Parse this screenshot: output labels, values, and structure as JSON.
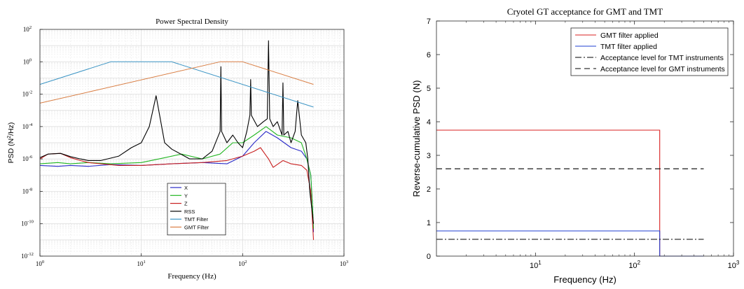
{
  "chart_data": [
    {
      "type": "line",
      "title": "Power Spectral Density",
      "xlabel": "Frequency (Hz)",
      "ylabel": "PSD (N²/Hz)",
      "xscale": "log",
      "yscale": "log",
      "xlim": [
        1,
        1000
      ],
      "ylim": [
        1e-12,
        100
      ],
      "grid": true,
      "legend_position": "bottom-center",
      "xticks": [
        {
          "value": 1,
          "base": "10",
          "exp": "0"
        },
        {
          "value": 10,
          "base": "10",
          "exp": "1"
        },
        {
          "value": 100,
          "base": "10",
          "exp": "2"
        },
        {
          "value": 1000,
          "base": "10",
          "exp": "3"
        }
      ],
      "yticks": [
        {
          "value": 1e-12,
          "base": "10",
          "exp": "-12"
        },
        {
          "value": 1e-10,
          "base": "10",
          "exp": "-10"
        },
        {
          "value": 1e-08,
          "base": "10",
          "exp": "-8"
        },
        {
          "value": 1e-06,
          "base": "10",
          "exp": "-6"
        },
        {
          "value": 0.0001,
          "base": "10",
          "exp": "-4"
        },
        {
          "value": 0.01,
          "base": "10",
          "exp": "-2"
        },
        {
          "value": 1,
          "base": "10",
          "exp": "0"
        },
        {
          "value": 100,
          "base": "10",
          "exp": "2"
        }
      ],
      "series": [
        {
          "name": "X",
          "color": "#2a2ac8",
          "x": [
            1,
            1.5,
            2,
            3,
            5,
            10,
            20,
            40,
            70,
            100,
            130,
            170,
            220,
            300,
            380,
            430,
            470,
            490,
            500
          ],
          "y": [
            4e-07,
            3.5e-07,
            4e-07,
            3.5e-07,
            4.5e-07,
            4e-07,
            5e-07,
            6e-07,
            5e-07,
            1.5e-06,
            1e-05,
            5e-05,
            2e-05,
            5e-06,
            3e-06,
            1e-06,
            1e-07,
            1e-09,
            3e-11
          ]
        },
        {
          "name": "Y",
          "color": "#22b622",
          "x": [
            1,
            1.5,
            2,
            3,
            5,
            10,
            15,
            25,
            40,
            60,
            80,
            100,
            130,
            170,
            220,
            300,
            380,
            430,
            470,
            490,
            500
          ],
          "y": [
            5e-07,
            6e-07,
            5e-07,
            6e-07,
            5e-07,
            6e-07,
            1e-06,
            2e-06,
            1e-06,
            2e-06,
            1e-05,
            1e-05,
            3e-05,
            0.0001,
            3e-05,
            2e-05,
            1e-05,
            1e-06,
            1e-07,
            1e-09,
            5e-11
          ]
        },
        {
          "name": "Z",
          "color": "#c82020",
          "x": [
            1,
            1.2,
            1.6,
            2,
            2.5,
            3,
            4,
            6,
            10,
            20,
            40,
            70,
            100,
            130,
            150,
            180,
            200,
            250,
            300,
            380,
            430,
            470,
            490,
            500
          ],
          "y": [
            1e-06,
            2e-06,
            2.2e-06,
            1.2e-06,
            8e-07,
            6e-07,
            5e-07,
            4e-07,
            4e-07,
            5e-07,
            6e-07,
            8e-07,
            1.5e-06,
            3e-06,
            5e-06,
            1e-06,
            3e-07,
            8e-07,
            5e-07,
            4e-07,
            2e-07,
            1e-08,
            1e-10,
            1e-11
          ]
        },
        {
          "name": "RSS",
          "color": "#000000",
          "x": [
            1,
            1.2,
            1.6,
            2,
            2.5,
            3,
            4,
            6,
            8,
            10,
            12,
            14,
            17,
            20,
            30,
            40,
            50,
            60,
            61,
            62,
            70,
            80,
            90,
            100,
            110,
            118,
            120,
            122,
            140,
            160,
            175,
            180,
            185,
            200,
            220,
            245,
            250,
            255,
            280,
            300,
            330,
            350,
            380,
            420,
            440,
            460,
            480,
            500
          ],
          "y": [
            1.2e-06,
            2e-06,
            2.2e-06,
            1.4e-06,
            1e-06,
            8e-07,
            8e-07,
            1.5e-06,
            5e-06,
            1e-05,
            0.0001,
            0.008,
            1e-05,
            4e-06,
            1e-06,
            1e-06,
            3e-06,
            5e-05,
            0.5,
            5e-05,
            1e-05,
            3e-05,
            1e-05,
            5e-06,
            5e-05,
            0.0005,
            0.08,
            0.0005,
            0.0001,
            0.0002,
            0.0003,
            20,
            0.0003,
            0.0001,
            0.0002,
            3e-05,
            0.05,
            3e-05,
            5e-05,
            1e-05,
            5e-05,
            0.004,
            3e-05,
            1e-05,
            1e-06,
            1e-08,
            1e-09,
            1e-10
          ]
        },
        {
          "name": "TMT Filter",
          "color": "#3a94c4",
          "x": [
            1,
            5,
            20,
            500
          ],
          "y": [
            0.04,
            1,
            1,
            0.0016
          ]
        },
        {
          "name": "GMT Filter",
          "color": "#d97f45",
          "x": [
            1,
            60,
            100,
            500
          ],
          "y": [
            0.0028,
            1,
            1,
            0.04
          ]
        }
      ]
    },
    {
      "type": "line",
      "title": "Cryotel GT acceptance for GMT and TMT",
      "xlabel": "Frequency (Hz)",
      "ylabel": "Reverse-cumulative PSD (N)",
      "xscale": "log",
      "xlim": [
        1,
        1000
      ],
      "ylim": [
        0,
        7
      ],
      "grid": false,
      "legend_position": "top-right",
      "xticks": [
        {
          "value": 10,
          "base": "10",
          "exp": "1"
        },
        {
          "value": 100,
          "base": "10",
          "exp": "2"
        },
        {
          "value": 1000,
          "base": "10",
          "exp": "3"
        }
      ],
      "yticks": [
        0,
        1,
        2,
        3,
        4,
        5,
        6,
        7
      ],
      "series": [
        {
          "name": "GMT filter applied",
          "color": "#d92020",
          "dash": "",
          "x": [
            1,
            180,
            180,
            500
          ],
          "y": [
            3.75,
            3.75,
            0,
            0
          ]
        },
        {
          "name": "TMT filter applied",
          "color": "#1f3fd0",
          "dash": "",
          "x": [
            1,
            180,
            180,
            500
          ],
          "y": [
            0.75,
            0.75,
            0,
            0
          ]
        },
        {
          "name": "Acceptance level for TMT instruments",
          "color": "#000000",
          "dash": "9,3,2,3",
          "x": [
            1,
            500
          ],
          "y": [
            0.5,
            0.5
          ]
        },
        {
          "name": "Acceptance level for GMT instruments",
          "color": "#000000",
          "dash": "8,5",
          "x": [
            1,
            500
          ],
          "y": [
            2.6,
            2.6
          ]
        }
      ]
    }
  ]
}
